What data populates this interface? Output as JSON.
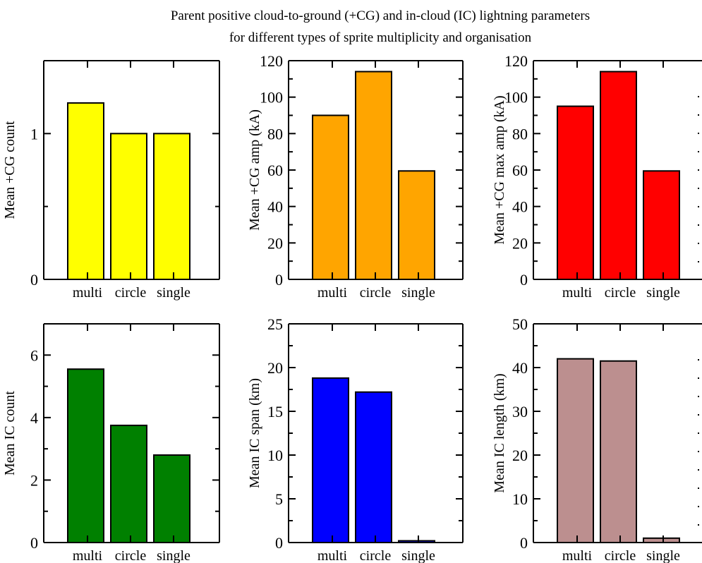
{
  "title_lines": [
    "Parent positive cloud-to-ground (+CG) and in-cloud (IC) lightning parameters",
    "for different types of sprite multiplicity and organisation"
  ],
  "chart_data": [
    {
      "type": "bar",
      "categories": [
        "multi",
        "circle",
        "single"
      ],
      "values": [
        1.21,
        1.0,
        1.0
      ],
      "colors": [
        "#ffff00",
        "#ffff00",
        "#ffff00"
      ],
      "ylabel": "Mean +CG count",
      "ylim": [
        0,
        1.5
      ],
      "yticks": [
        0,
        1
      ],
      "minor_yticks": [
        0.5
      ]
    },
    {
      "type": "bar",
      "categories": [
        "multi",
        "circle",
        "single"
      ],
      "values": [
        90,
        114,
        59.5
      ],
      "colors": [
        "#ffa500",
        "#ffa500",
        "#ffa500"
      ],
      "ylabel": "Mean +CG amp (kA)",
      "ylim": [
        0,
        120
      ],
      "yticks": [
        0,
        20,
        40,
        60,
        80,
        100,
        120
      ],
      "minor_yticks": [
        10,
        30,
        50,
        70,
        90,
        110
      ]
    },
    {
      "type": "bar",
      "categories": [
        "multi",
        "circle",
        "single"
      ],
      "values": [
        95,
        114,
        59.5
      ],
      "colors": [
        "#ff0000",
        "#ff0000",
        "#ff0000"
      ],
      "ylabel": "Mean +CG max amp (kA)",
      "ylim": [
        0,
        120
      ],
      "yticks": [
        0,
        20,
        40,
        60,
        80,
        100,
        120
      ],
      "minor_yticks": [
        10,
        30,
        50,
        70,
        90,
        110
      ]
    },
    {
      "type": "bar",
      "categories": [
        "multi",
        "circle",
        "single"
      ],
      "values": [
        5.55,
        3.75,
        2.8
      ],
      "colors": [
        "#008000",
        "#008000",
        "#008000"
      ],
      "ylabel": "Mean IC count",
      "ylim": [
        0,
        7
      ],
      "yticks": [
        0,
        2,
        4,
        6
      ],
      "minor_yticks": [
        1,
        3,
        5
      ]
    },
    {
      "type": "bar",
      "categories": [
        "multi",
        "circle",
        "single"
      ],
      "values": [
        18.8,
        17.2,
        0.2
      ],
      "colors": [
        "#0000ff",
        "#0000ff",
        "#0000ff"
      ],
      "ylabel": "Mean IC span (km)",
      "ylim": [
        0,
        25
      ],
      "yticks": [
        0,
        5,
        10,
        15,
        20,
        25
      ],
      "minor_yticks": [
        2.5,
        7.5,
        12.5,
        17.5,
        22.5
      ]
    },
    {
      "type": "bar",
      "categories": [
        "multi",
        "circle",
        "single"
      ],
      "values": [
        42,
        41.5,
        1.0
      ],
      "colors": [
        "#bc8f8f",
        "#bc8f8f",
        "#bc8f8f"
      ],
      "ylabel": "Mean IC length (km)",
      "ylim": [
        0,
        50
      ],
      "yticks": [
        0,
        10,
        20,
        30,
        40,
        50
      ],
      "minor_yticks": [
        5,
        15,
        25,
        35,
        45
      ]
    }
  ]
}
